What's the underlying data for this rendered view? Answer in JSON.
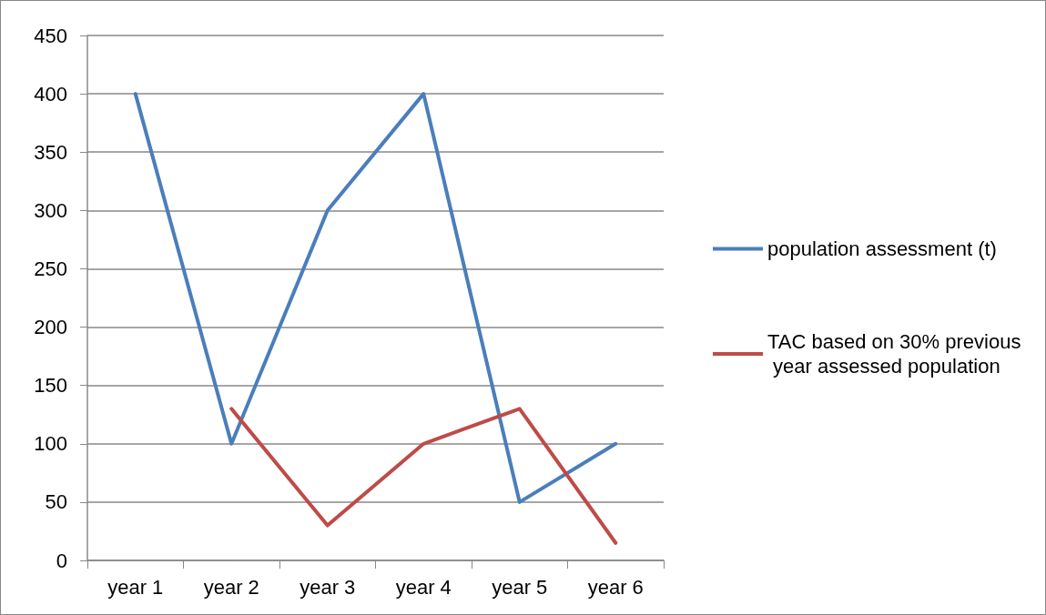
{
  "chart_data": {
    "type": "line",
    "categories": [
      "year 1",
      "year 2",
      "year 3",
      "year 4",
      "year 5",
      "year 6"
    ],
    "series": [
      {
        "name": "population assessment (t)",
        "color": "#4a7ebb",
        "values": [
          400,
          100,
          300,
          400,
          50,
          100
        ]
      },
      {
        "name": "TAC based on 30% previous year assessed population",
        "color": "#be4b48",
        "values": [
          null,
          130,
          30,
          100,
          130,
          15
        ]
      }
    ],
    "ylim": [
      0,
      450
    ],
    "yticks": [
      0,
      50,
      100,
      150,
      200,
      250,
      300,
      350,
      400,
      450
    ],
    "grid": "y",
    "legend": "right",
    "marker": "none",
    "line_style": "solid"
  }
}
